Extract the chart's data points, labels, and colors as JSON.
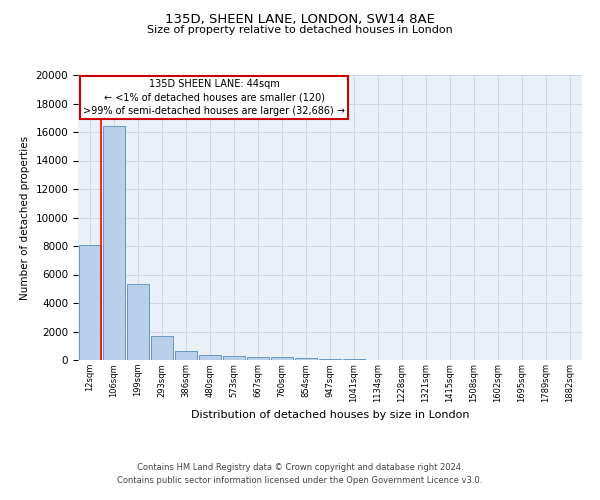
{
  "title1": "135D, SHEEN LANE, LONDON, SW14 8AE",
  "title2": "Size of property relative to detached houses in London",
  "xlabel": "Distribution of detached houses by size in London",
  "ylabel": "Number of detached properties",
  "bar_labels": [
    "12sqm",
    "106sqm",
    "199sqm",
    "293sqm",
    "386sqm",
    "480sqm",
    "573sqm",
    "667sqm",
    "760sqm",
    "854sqm",
    "947sqm",
    "1041sqm",
    "1134sqm",
    "1228sqm",
    "1321sqm",
    "1415sqm",
    "1508sqm",
    "1602sqm",
    "1695sqm",
    "1789sqm",
    "1882sqm"
  ],
  "bar_values": [
    8100,
    16400,
    5300,
    1700,
    650,
    330,
    270,
    230,
    200,
    160,
    80,
    40,
    20,
    10,
    5,
    3,
    2,
    1,
    1,
    1,
    0
  ],
  "bar_color": "#b8d0ea",
  "bar_edge_color": "#5b8db8",
  "grid_color": "#d0d8e8",
  "bg_color": "#eaf0f8",
  "red_line_x": 0.47,
  "annotation_title": "135D SHEEN LANE: 44sqm",
  "annotation_line1": "← <1% of detached houses are smaller (120)",
  "annotation_line2": ">99% of semi-detached houses are larger (32,686) →",
  "annotation_box_color": "#ffffff",
  "annotation_border_color": "#cc0000",
  "footer_line1": "Contains HM Land Registry data © Crown copyright and database right 2024.",
  "footer_line2": "Contains public sector information licensed under the Open Government Licence v3.0.",
  "ylim": [
    0,
    20000
  ],
  "yticks": [
    0,
    2000,
    4000,
    6000,
    8000,
    10000,
    12000,
    14000,
    16000,
    18000,
    20000
  ]
}
